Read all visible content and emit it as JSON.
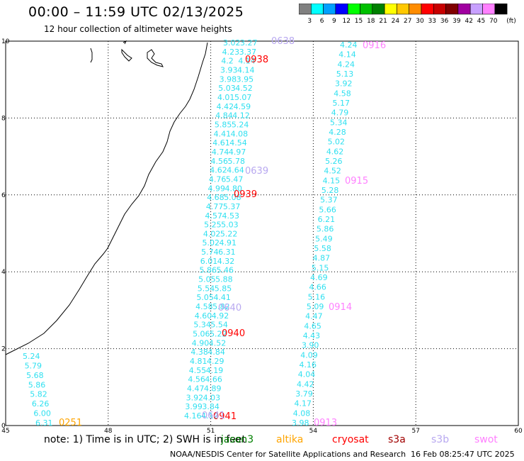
{
  "header": {
    "title": "00:00 – 11:59 UTC 02/13/2025",
    "subtitle": "12 hour collection of altimeter wave heights"
  },
  "color_scale": {
    "unit": "(ft)",
    "bins": [
      {
        "label": "3",
        "color": "#808080"
      },
      {
        "label": "6",
        "color": "#00ffff"
      },
      {
        "label": "9",
        "color": "#00a0ff"
      },
      {
        "label": "12",
        "color": "#0000ff"
      },
      {
        "label": "15",
        "color": "#00ff00"
      },
      {
        "label": "18",
        "color": "#00c000"
      },
      {
        "label": "21",
        "color": "#008000"
      },
      {
        "label": "24",
        "color": "#ffff00"
      },
      {
        "label": "27",
        "color": "#ffc800"
      },
      {
        "label": "30",
        "color": "#ff8c00"
      },
      {
        "label": "33",
        "color": "#ff0000"
      },
      {
        "label": "36",
        "color": "#c80000"
      },
      {
        "label": "39",
        "color": "#800000"
      },
      {
        "label": "42",
        "color": "#a000a0"
      },
      {
        "label": "45",
        "color": "#c8a0ff"
      },
      {
        "label": "70",
        "color": "#ff80ff"
      },
      {
        "label": "",
        "color": "#000000"
      }
    ]
  },
  "axes": {
    "lon_ticks": [
      "45",
      "48",
      "51",
      "54",
      "57",
      "60"
    ],
    "lat_ticks": [
      "0",
      "2",
      "4",
      "6",
      "8",
      "10"
    ],
    "lon_range": [
      45,
      60
    ],
    "lat_range": [
      0,
      10
    ]
  },
  "passes": [
    {
      "name": "left",
      "color": "#30e0f0",
      "values": [
        "3.02",
        "3.27",
        "4.23",
        "3.37",
        "4.2",
        "4.14",
        "3.93",
        "4.14",
        "3.98",
        "3.95",
        "5.03",
        "4.52",
        "4.01",
        "5.07",
        "4.42",
        "4.59",
        "4.84",
        "4.12",
        "5.85",
        "5.24",
        "4.41",
        "4.08",
        "4.61",
        "4.54",
        "4.74",
        "4.97",
        "4.56",
        "5.78",
        "4.62",
        "4.64",
        "4.76",
        "5.47",
        "4.99",
        "4.80",
        "4.68",
        "5.08",
        "4.77",
        "5.37",
        "4.57",
        "4.53",
        "5.25",
        "5.03",
        "4.02",
        "5.22",
        "5.02",
        "4.91",
        "5.74",
        "6.31",
        "6.01",
        "4.32",
        "5.86",
        "5.46",
        "5.05",
        "5.88",
        "5.54",
        "5.85",
        "5.05",
        "4.41",
        "4.58",
        "5.82",
        "4.60",
        "4.92",
        "5.34",
        "5.54",
        "5.06",
        "5.22",
        "4.90",
        "4.52",
        "4.38",
        "4.84",
        "4.81",
        "4.29",
        "4.55",
        "4.19",
        "4.56",
        "4.66",
        "4.47",
        "4.89",
        "3.92",
        "4.03",
        "3.99",
        "3.84",
        "4.16",
        "4.12"
      ]
    },
    {
      "name": "middle",
      "color": "#30e0f0",
      "values": [
        "4.24",
        "4.14",
        "4.24",
        "5.13",
        "3.92",
        "4.58",
        "5.17",
        "4.79",
        "5.34",
        "4.28",
        "5.02",
        "4.62",
        "5.26",
        "4.52",
        "4.15",
        "5.28",
        "5.37",
        "5.66",
        "6.21",
        "5.86",
        "5.49",
        "5.58",
        "4.87",
        "5.15",
        "4.69",
        "4.66",
        "5.16",
        "5.09",
        "4.47",
        "4.65",
        "4.43",
        "3.90",
        "4.09",
        "4.16",
        "4.04",
        "4.42",
        "3.79",
        "4.17",
        "4.08",
        "3.98"
      ]
    },
    {
      "name": "bottom-left",
      "color": "#30e0f0",
      "values": [
        "5.24",
        "5.79",
        "5.68",
        "5.86",
        "5.82",
        "6.26",
        "6.00",
        "6.31"
      ]
    }
  ],
  "time_labels": [
    {
      "text": "0638",
      "color": "#b8a8f0"
    },
    {
      "text": "0938",
      "color": "#ff0000"
    },
    {
      "text": "0916",
      "color": "#ff80ff"
    },
    {
      "text": "0639",
      "color": "#b8a8f0"
    },
    {
      "text": "0915",
      "color": "#ff80ff"
    },
    {
      "text": "0939",
      "color": "#ff0000"
    },
    {
      "text": "0640",
      "color": "#b8a8f0"
    },
    {
      "text": "0914",
      "color": "#ff80ff"
    },
    {
      "text": "0940",
      "color": "#ff0000"
    },
    {
      "text": "0941",
      "color": "#ff0000"
    },
    {
      "text": "0913",
      "color": "#ff80ff"
    },
    {
      "text": "0251",
      "color": "#ffa500"
    },
    {
      "text": "0641",
      "color": "#b8a8f0"
    }
  ],
  "footer": {
    "note": "note:  1) Time is in UTC;  2) SWH is in feet",
    "satellites": [
      {
        "name": "jason3",
        "color": "#008000"
      },
      {
        "name": "altika",
        "color": "#ffa500"
      },
      {
        "name": "cryosat",
        "color": "#ff0000"
      },
      {
        "name": "s3a",
        "color": "#a00000"
      },
      {
        "name": "s3b",
        "color": "#b8a8f0"
      },
      {
        "name": "swot",
        "color": "#ff80ff"
      }
    ],
    "organization": "NOAA/NESDIS Center for Satellite Applications and Research",
    "timestamp": "16 Feb 08:25:47 UTC 2025"
  }
}
